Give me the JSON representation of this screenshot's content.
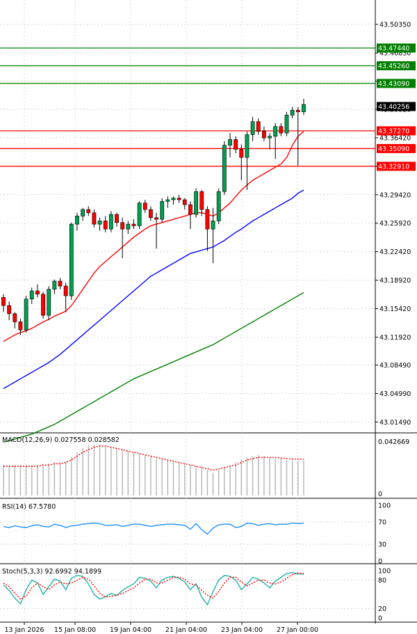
{
  "chart_data": [
    {
      "type": "candlestick",
      "panel": "price",
      "y_ticks": [
        "43.50350",
        "43.46830",
        "43.43350",
        "43.39920",
        "43.36420",
        "43.32910",
        "43.29420",
        "43.25920",
        "43.22420",
        "43.18920",
        "43.15420",
        "43.11920",
        "43.08490",
        "43.04990",
        "43.01490"
      ],
      "ylim": [
        43.005,
        43.53
      ],
      "current_price": "43.40256",
      "resistance": [
        "43.47440",
        "43.45260",
        "43.43090"
      ],
      "support": [
        "43.37270",
        "43.35090",
        "43.32910"
      ],
      "colors": {
        "bull": "#00a050",
        "bear": "#ff0000",
        "resistance": "#008000",
        "support": "#ff0000",
        "ma_fast": "#ff0000",
        "ma_mid": "#0000ff",
        "ma_slow": "#008000"
      },
      "candles": [
        [
          43.168,
          43.172,
          43.15,
          43.158
        ],
        [
          43.158,
          43.163,
          43.14,
          43.148
        ],
        [
          43.148,
          43.15,
          43.13,
          43.138
        ],
        [
          43.138,
          43.142,
          43.122,
          43.128
        ],
        [
          43.128,
          43.17,
          43.125,
          43.166
        ],
        [
          43.166,
          43.18,
          43.16,
          43.176
        ],
        [
          43.176,
          43.184,
          43.168,
          43.172
        ],
        [
          43.172,
          43.175,
          43.142,
          43.146
        ],
        [
          43.146,
          43.182,
          43.14,
          43.178
        ],
        [
          43.178,
          43.19,
          43.172,
          43.188
        ],
        [
          43.188,
          43.192,
          43.178,
          43.182
        ],
        [
          43.182,
          43.186,
          43.15,
          43.17
        ],
        [
          43.17,
          43.26,
          43.165,
          43.258
        ],
        [
          43.258,
          43.272,
          43.25,
          43.268
        ],
        [
          43.268,
          43.278,
          43.262,
          43.276
        ],
        [
          43.276,
          43.28,
          43.268,
          43.272
        ],
        [
          43.272,
          43.276,
          43.254,
          43.258
        ],
        [
          43.258,
          43.266,
          43.25,
          43.262
        ],
        [
          43.262,
          43.268,
          43.248,
          43.252
        ],
        [
          43.252,
          43.274,
          43.248,
          43.27
        ],
        [
          43.27,
          43.272,
          43.255,
          43.26
        ],
        [
          43.26,
          43.266,
          43.216,
          43.252
        ],
        [
          43.252,
          43.262,
          43.246,
          43.258
        ],
        [
          43.258,
          43.264,
          43.252,
          43.256
        ],
        [
          43.256,
          43.286,
          43.252,
          43.284
        ],
        [
          43.284,
          43.288,
          43.272,
          43.276
        ],
        [
          43.276,
          43.28,
          43.262,
          43.266
        ],
        [
          43.266,
          43.272,
          43.228,
          43.264
        ],
        [
          43.264,
          43.29,
          43.26,
          43.286
        ],
        [
          43.286,
          43.292,
          43.278,
          43.288
        ],
        [
          43.288,
          43.292,
          43.282,
          43.29
        ],
        [
          43.29,
          43.294,
          43.284,
          43.288
        ],
        [
          43.288,
          43.29,
          43.276,
          43.282
        ],
        [
          43.282,
          43.286,
          43.252,
          43.27
        ],
        [
          43.27,
          43.302,
          43.266,
          43.298
        ],
        [
          43.298,
          43.3,
          43.268,
          43.276
        ],
        [
          43.276,
          43.28,
          43.225,
          43.252
        ],
        [
          43.252,
          43.278,
          43.21,
          43.262
        ],
        [
          43.262,
          43.302,
          43.258,
          43.298
        ],
        [
          43.298,
          43.36,
          43.294,
          43.355
        ],
        [
          43.355,
          43.37,
          43.34,
          43.362
        ],
        [
          43.362,
          43.366,
          43.345,
          43.35
        ],
        [
          43.35,
          43.356,
          43.312,
          43.34
        ],
        [
          43.34,
          43.372,
          43.3,
          43.368
        ],
        [
          43.368,
          43.39,
          43.36,
          43.384
        ],
        [
          43.384,
          43.388,
          43.368,
          43.372
        ],
        [
          43.372,
          43.378,
          43.36,
          43.364
        ],
        [
          43.364,
          43.37,
          43.35,
          43.366
        ],
        [
          43.366,
          43.382,
          43.338,
          43.378
        ],
        [
          43.378,
          43.382,
          43.366,
          43.37
        ],
        [
          43.37,
          43.396,
          43.366,
          43.392
        ],
        [
          43.392,
          43.402,
          43.388,
          43.398
        ],
        [
          43.398,
          43.402,
          43.33,
          43.396
        ],
        [
          43.396,
          43.412,
          43.392,
          43.405
        ]
      ],
      "ma_fast": [
        43.114,
        43.118,
        43.122,
        43.125,
        43.127,
        43.13,
        43.134,
        43.138,
        43.141,
        43.145,
        43.148,
        43.151,
        43.158,
        43.168,
        43.178,
        43.188,
        43.198,
        43.206,
        43.212,
        43.218,
        43.224,
        43.23,
        43.236,
        43.242,
        43.247,
        43.252,
        43.256,
        43.258,
        43.26,
        43.262,
        43.264,
        43.266,
        43.268,
        43.27,
        43.272,
        43.272,
        43.27,
        43.268,
        43.272,
        43.278,
        43.284,
        43.292,
        43.3,
        43.306,
        43.312,
        43.316,
        43.32,
        43.324,
        43.328,
        43.332,
        43.34,
        43.355,
        43.366,
        43.372
      ],
      "ma_mid": [
        43.056,
        43.06,
        43.064,
        43.068,
        43.072,
        43.076,
        43.08,
        43.084,
        43.088,
        43.093,
        43.098,
        43.104,
        43.11,
        43.116,
        43.122,
        43.128,
        43.134,
        43.14,
        43.146,
        43.152,
        43.158,
        43.164,
        43.17,
        43.176,
        43.182,
        43.188,
        43.194,
        43.198,
        43.202,
        43.206,
        43.21,
        43.214,
        43.218,
        43.222,
        43.224,
        43.226,
        43.228,
        43.23,
        43.234,
        43.238,
        43.243,
        43.248,
        43.252,
        43.257,
        43.262,
        43.266,
        43.27,
        43.274,
        43.278,
        43.282,
        43.286,
        43.29,
        43.296,
        43.3
      ],
      "ma_slow": [
        42.99,
        42.992,
        42.994,
        42.996,
        42.998,
        43.0,
        43.003,
        43.006,
        43.009,
        43.012,
        43.016,
        43.02,
        43.024,
        43.028,
        43.032,
        43.036,
        43.04,
        43.044,
        43.048,
        43.052,
        43.056,
        43.06,
        43.064,
        43.068,
        43.071,
        43.074,
        43.077,
        43.08,
        43.083,
        43.086,
        43.089,
        43.092,
        43.095,
        43.098,
        43.101,
        43.104,
        43.107,
        43.11,
        43.114,
        43.118,
        43.122,
        43.126,
        43.13,
        43.134,
        43.138,
        43.142,
        43.146,
        43.15,
        43.154,
        43.158,
        43.162,
        43.166,
        43.17,
        43.174
      ]
    },
    {
      "type": "bar",
      "panel": "macd",
      "label": "MACD(12,26,9) 0.027558 0.028582",
      "y_ticks": [
        "0.042669",
        "0"
      ],
      "ylim": [
        0,
        0.046
      ],
      "histogram": [
        0.024,
        0.024,
        0.024,
        0.024,
        0.024,
        0.024,
        0.024,
        0.025,
        0.025,
        0.026,
        0.026,
        0.027,
        0.03,
        0.034,
        0.037,
        0.039,
        0.04,
        0.04,
        0.039,
        0.038,
        0.037,
        0.036,
        0.035,
        0.034,
        0.033,
        0.032,
        0.031,
        0.03,
        0.029,
        0.028,
        0.027,
        0.026,
        0.025,
        0.024,
        0.023,
        0.022,
        0.02,
        0.018,
        0.02,
        0.022,
        0.024,
        0.026,
        0.028,
        0.03,
        0.031,
        0.032,
        0.031,
        0.03,
        0.029,
        0.029,
        0.028,
        0.028,
        0.027,
        0.0276
      ],
      "signal": [
        0.023,
        0.023,
        0.023,
        0.023,
        0.023,
        0.023,
        0.023,
        0.024,
        0.024,
        0.025,
        0.025,
        0.026,
        0.028,
        0.031,
        0.034,
        0.036,
        0.038,
        0.039,
        0.039,
        0.038,
        0.037,
        0.036,
        0.035,
        0.034,
        0.033,
        0.032,
        0.031,
        0.03,
        0.029,
        0.028,
        0.027,
        0.026,
        0.025,
        0.024,
        0.023,
        0.022,
        0.021,
        0.02,
        0.021,
        0.022,
        0.023,
        0.024,
        0.026,
        0.028,
        0.029,
        0.03,
        0.03,
        0.03,
        0.03,
        0.0295,
        0.029,
        0.0288,
        0.0287,
        0.0286
      ]
    },
    {
      "type": "line",
      "panel": "rsi",
      "label": "RSI(14) 67.5780",
      "y_ticks": [
        "100",
        "70",
        "30",
        "0"
      ],
      "ylim": [
        0,
        100
      ],
      "values": [
        62,
        60,
        63,
        61,
        60,
        63,
        65,
        62,
        61,
        66,
        64,
        60,
        63,
        64,
        66,
        67,
        68,
        67,
        64,
        64,
        65,
        62,
        64,
        66,
        66,
        64,
        62,
        64,
        65,
        66,
        66,
        65,
        64,
        57,
        67,
        56,
        48,
        59,
        65,
        66,
        66,
        60,
        62,
        68,
        67,
        64,
        66,
        67,
        65,
        66,
        66,
        68,
        67,
        67.6
      ]
    },
    {
      "type": "line",
      "panel": "stoch",
      "label": "Stoch(5,3,3) 92.6992 94.1899",
      "y_ticks": [
        "100",
        "80",
        "20",
        "0"
      ],
      "ylim": [
        0,
        100
      ],
      "main": [
        70,
        58,
        42,
        30,
        60,
        80,
        74,
        50,
        66,
        82,
        78,
        60,
        84,
        90,
        88,
        72,
        50,
        40,
        45,
        52,
        48,
        58,
        66,
        72,
        86,
        84,
        78,
        64,
        80,
        86,
        88,
        84,
        76,
        60,
        72,
        44,
        28,
        56,
        80,
        90,
        88,
        80,
        60,
        72,
        86,
        82,
        74,
        64,
        78,
        86,
        94,
        96,
        93,
        92.7
      ],
      "signal": [
        74,
        66,
        52,
        40,
        46,
        64,
        74,
        66,
        60,
        70,
        76,
        72,
        74,
        80,
        86,
        82,
        68,
        52,
        44,
        46,
        48,
        52,
        58,
        64,
        74,
        82,
        82,
        74,
        74,
        80,
        86,
        86,
        82,
        72,
        70,
        58,
        48,
        42,
        56,
        74,
        86,
        86,
        76,
        68,
        74,
        80,
        80,
        74,
        72,
        76,
        84,
        92,
        95,
        94.2
      ]
    }
  ],
  "x_labels": [
    "13 Jan 2026",
    "15 Jan 08:00",
    "19 Jan 04:00",
    "21 Jan 04:00",
    "23 Jan 04:00",
    "27 Jan 00:00"
  ]
}
